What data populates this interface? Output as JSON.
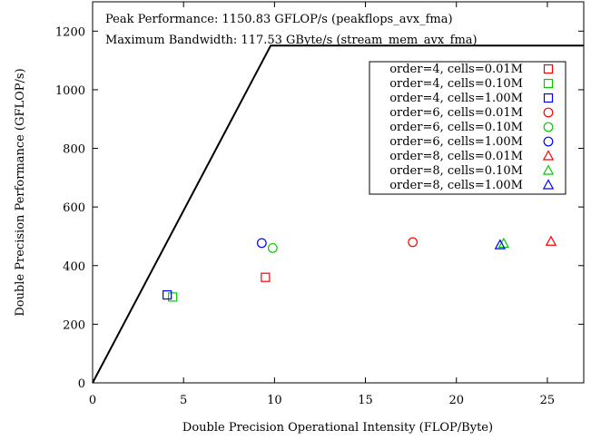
{
  "chart_data": {
    "type": "scatter",
    "xlabel": "Double Precision Operational Intensity (FLOP/Byte)",
    "ylabel": "Double Precision Performance (GFLOP/s)",
    "xlim": [
      0,
      27
    ],
    "ylim": [
      0,
      1300
    ],
    "x_ticks": [
      0,
      5,
      10,
      15,
      20,
      25
    ],
    "y_ticks": [
      0,
      200,
      400,
      600,
      800,
      1000,
      1200
    ],
    "grid": false,
    "legend_position": "top-right",
    "annotations": [
      "Peak Performance: 1150.83 GFLOP/s (peakflops_avx_fma)",
      "Maximum Bandwidth: 117.53 GByte/s (stream_mem_avx_fma)"
    ],
    "roofline": {
      "peak_gflops": 1150.83,
      "bandwidth_gbytes": 117.53,
      "color": "#000000"
    },
    "series": [
      {
        "name": "order=4, cells=0.01M",
        "marker": "square",
        "color": "#ff0000",
        "points": [
          [
            9.5,
            360
          ]
        ]
      },
      {
        "name": "order=4, cells=0.10M",
        "marker": "square",
        "color": "#00cc00",
        "points": [
          [
            4.4,
            293
          ]
        ]
      },
      {
        "name": "order=4, cells=1.00M",
        "marker": "square",
        "color": "#0000ff",
        "points": [
          [
            4.1,
            300
          ]
        ]
      },
      {
        "name": "order=6, cells=0.01M",
        "marker": "circle",
        "color": "#ff0000",
        "points": [
          [
            17.6,
            480
          ]
        ]
      },
      {
        "name": "order=6, cells=0.10M",
        "marker": "circle",
        "color": "#00cc00",
        "points": [
          [
            9.9,
            460
          ]
        ]
      },
      {
        "name": "order=6, cells=1.00M",
        "marker": "circle",
        "color": "#0000ff",
        "points": [
          [
            9.3,
            477
          ]
        ]
      },
      {
        "name": "order=8, cells=0.01M",
        "marker": "triangle",
        "color": "#ff0000",
        "points": [
          [
            25.2,
            482
          ]
        ]
      },
      {
        "name": "order=8, cells=0.10M",
        "marker": "triangle",
        "color": "#00cc00",
        "points": [
          [
            22.6,
            475
          ]
        ]
      },
      {
        "name": "order=8, cells=1.00M",
        "marker": "triangle",
        "color": "#0000ff",
        "points": [
          [
            22.4,
            470
          ]
        ]
      }
    ]
  }
}
